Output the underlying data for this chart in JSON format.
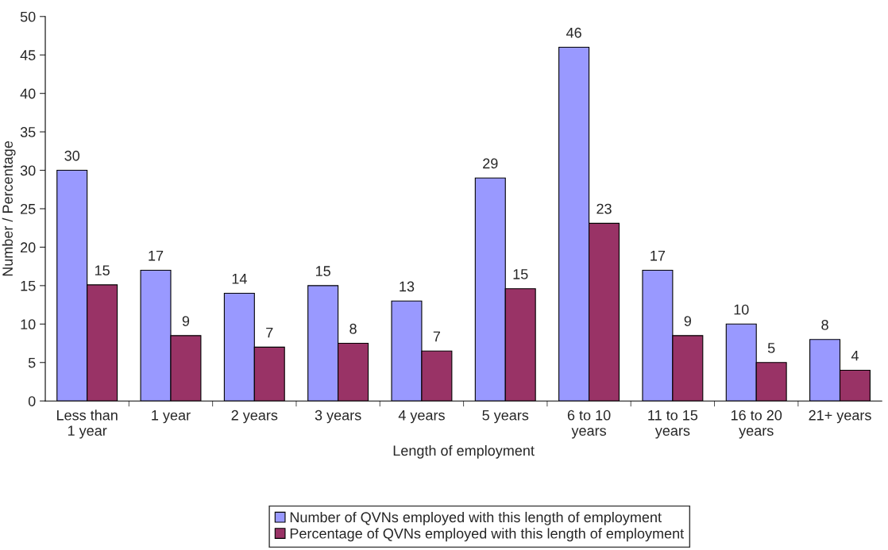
{
  "chart_data": {
    "type": "bar",
    "xlabel": "Length of employment",
    "ylabel": "Number / Percentage",
    "categories": [
      "Less than\n1 year",
      "1 year",
      "2 years",
      "3 years",
      "4 years",
      "5 years",
      "6 to 10\nyears",
      "11 to 15\nyears",
      "16 to 20\nyears",
      "21+ years"
    ],
    "series": [
      {
        "name": "Number of QVNs employed with this length of employment",
        "color": "#9999ff",
        "values": [
          30,
          17,
          14,
          15,
          13,
          29,
          46,
          17,
          10,
          8
        ],
        "value_labels": [
          "30",
          "17",
          "14",
          "15",
          "13",
          "29",
          "46",
          "17",
          "10",
          "8"
        ]
      },
      {
        "name": "Percentage of QVNs employed with this length of employment",
        "color": "#993366",
        "values": [
          15.1,
          8.5,
          7.0,
          7.5,
          6.5,
          14.6,
          23.1,
          8.5,
          5.0,
          4.0
        ],
        "value_labels": [
          "15",
          "9",
          "7",
          "8",
          "7",
          "15",
          "23",
          "9",
          "5",
          "4"
        ]
      }
    ],
    "ylim": [
      0,
      50
    ],
    "yticks": [
      0,
      5,
      10,
      15,
      20,
      25,
      30,
      35,
      40,
      45,
      50
    ],
    "grid": false,
    "legend": "bottom"
  }
}
